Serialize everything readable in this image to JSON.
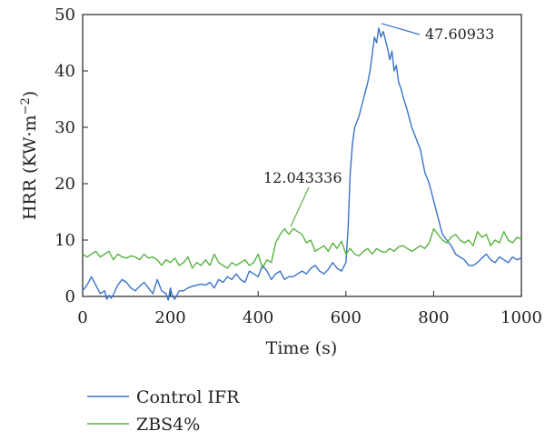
{
  "chart_data": {
    "type": "line",
    "xlabel": "Time (s)",
    "ylabel_main": "HRR (KW·m",
    "ylabel_sup": "−2",
    "ylabel_close": ")",
    "xlim": [
      0,
      1000
    ],
    "ylim": [
      0,
      50
    ],
    "xticks": [
      "0",
      "200",
      "400",
      "600",
      "800",
      "1000"
    ],
    "yticks": [
      "0",
      "10",
      "20",
      "30",
      "40",
      "50"
    ],
    "grid": false,
    "legend_position": "bottom-left",
    "series": [
      {
        "name": "Control IFR",
        "color": "#3a73c7",
        "x": [
          0,
          10,
          20,
          30,
          40,
          50,
          55,
          60,
          65,
          70,
          80,
          90,
          100,
          110,
          120,
          130,
          140,
          150,
          160,
          170,
          180,
          190,
          195,
          200,
          205,
          210,
          220,
          230,
          240,
          250,
          260,
          270,
          280,
          290,
          300,
          310,
          320,
          330,
          340,
          350,
          360,
          370,
          380,
          390,
          400,
          410,
          420,
          430,
          440,
          450,
          460,
          470,
          480,
          490,
          500,
          510,
          520,
          530,
          540,
          550,
          560,
          570,
          580,
          590,
          600,
          605,
          610,
          615,
          620,
          630,
          640,
          650,
          655,
          660,
          665,
          670,
          675,
          680,
          685,
          690,
          695,
          700,
          705,
          710,
          715,
          720,
          725,
          730,
          740,
          750,
          760,
          770,
          780,
          790,
          800,
          810,
          820,
          830,
          840,
          850,
          860,
          870,
          880,
          890,
          900,
          910,
          920,
          930,
          940,
          950,
          960,
          970,
          980,
          990,
          1000
        ],
        "values": [
          1.0,
          2.0,
          3.5,
          2.0,
          0.5,
          1.0,
          -0.5,
          0.2,
          -0.3,
          0.3,
          2.0,
          3.0,
          2.5,
          1.5,
          1.0,
          1.8,
          2.5,
          1.5,
          0.5,
          3.0,
          1.0,
          0.5,
          -1.0,
          1.5,
          0.0,
          -0.5,
          1.0,
          1.0,
          1.5,
          1.8,
          2.0,
          2.2,
          2.0,
          2.5,
          1.5,
          3.0,
          2.5,
          3.5,
          3.0,
          4.0,
          3.0,
          2.5,
          4.5,
          4.0,
          3.5,
          5.5,
          4.5,
          3.0,
          4.0,
          4.5,
          3.0,
          3.5,
          3.5,
          4.0,
          4.5,
          4.0,
          5.0,
          5.5,
          4.5,
          4.0,
          4.8,
          6.0,
          5.0,
          4.5,
          6.0,
          12.0,
          22.0,
          27.0,
          30.0,
          32.0,
          35.0,
          38.0,
          40.0,
          43.0,
          46.0,
          45.0,
          47.60933,
          46.0,
          47.0,
          45.5,
          44.0,
          42.0,
          43.5,
          40.0,
          41.0,
          38.0,
          37.0,
          35.5,
          33.0,
          30.0,
          28.0,
          26.0,
          22.0,
          20.0,
          17.0,
          14.0,
          11.0,
          10.0,
          9.0,
          7.5,
          7.0,
          6.5,
          5.5,
          5.5,
          6.0,
          6.8,
          7.5,
          6.5,
          6.0,
          7.0,
          6.5,
          6.0,
          7.0,
          6.5,
          6.8
        ]
      },
      {
        "name": "ZBS4%",
        "color": "#58b342",
        "x": [
          0,
          10,
          20,
          30,
          40,
          50,
          60,
          70,
          80,
          90,
          100,
          110,
          120,
          130,
          140,
          150,
          160,
          170,
          180,
          190,
          200,
          210,
          220,
          230,
          240,
          250,
          260,
          270,
          280,
          290,
          300,
          310,
          320,
          330,
          340,
          350,
          360,
          370,
          380,
          390,
          400,
          410,
          420,
          430,
          440,
          450,
          460,
          470,
          480,
          490,
          500,
          510,
          520,
          530,
          540,
          550,
          560,
          570,
          580,
          590,
          600,
          610,
          620,
          630,
          640,
          650,
          660,
          670,
          680,
          690,
          700,
          710,
          720,
          730,
          740,
          750,
          760,
          770,
          780,
          790,
          800,
          810,
          820,
          830,
          840,
          850,
          860,
          870,
          880,
          890,
          900,
          910,
          920,
          930,
          940,
          950,
          960,
          970,
          980,
          990,
          1000
        ],
        "values": [
          7.5,
          7.0,
          7.5,
          8.0,
          7.0,
          7.5,
          8.0,
          6.5,
          7.5,
          7.0,
          6.8,
          7.2,
          7.0,
          6.5,
          7.5,
          6.8,
          7.0,
          6.5,
          5.5,
          6.5,
          6.0,
          6.8,
          5.5,
          6.0,
          7.0,
          5.0,
          6.0,
          5.5,
          6.5,
          5.5,
          7.5,
          6.0,
          5.5,
          5.0,
          6.0,
          5.5,
          6.0,
          6.5,
          5.5,
          6.0,
          7.5,
          5.0,
          6.5,
          6.0,
          9.5,
          11.0,
          12.0,
          11.0,
          12.043336,
          11.5,
          11.0,
          9.5,
          10.0,
          8.0,
          8.5,
          9.0,
          8.0,
          9.5,
          8.5,
          9.8,
          7.5,
          8.5,
          7.5,
          7.2,
          8.0,
          8.5,
          7.5,
          8.5,
          8.0,
          7.8,
          8.5,
          8.0,
          8.8,
          9.0,
          8.5,
          8.0,
          8.5,
          9.0,
          8.5,
          9.5,
          12.0,
          11.0,
          10.0,
          9.5,
          10.5,
          11.0,
          10.0,
          9.5,
          10.0,
          9.0,
          11.5,
          10.5,
          11.0,
          9.0,
          10.0,
          9.5,
          11.5,
          10.0,
          9.5,
          10.5,
          10.2
        ]
      }
    ],
    "annotations": [
      {
        "text": "47.60933",
        "x": 685,
        "y": 47.60933
      },
      {
        "text": "12.043336",
        "x": 478,
        "y": 12.043336
      }
    ]
  }
}
